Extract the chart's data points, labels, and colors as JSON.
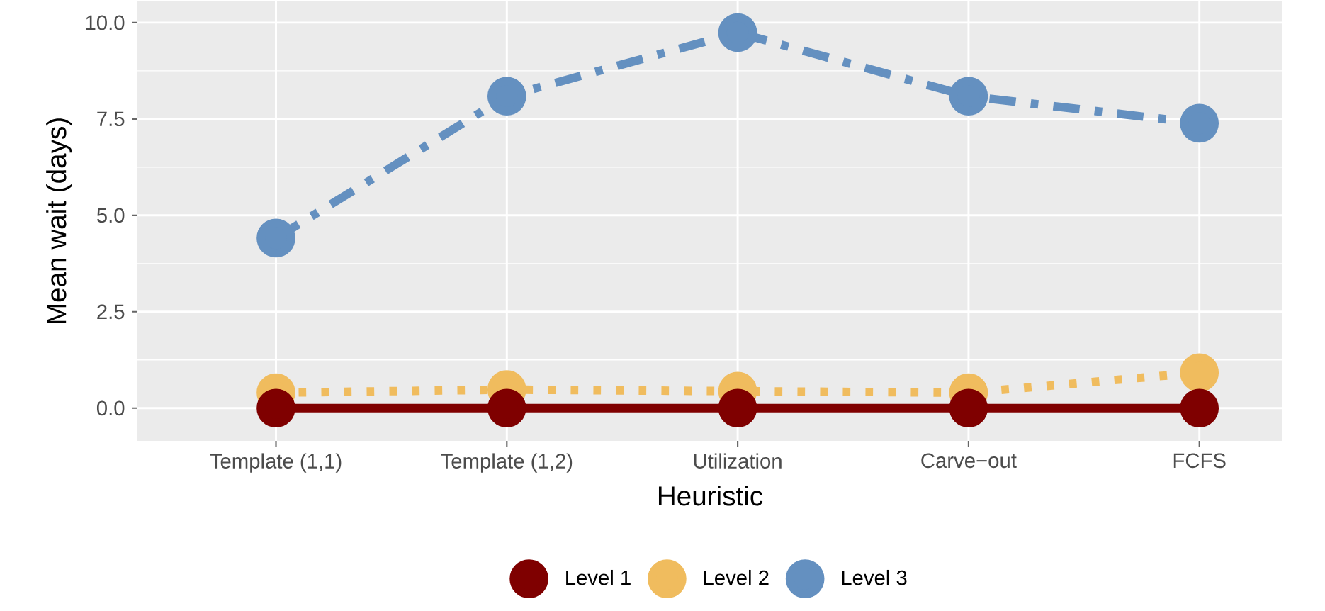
{
  "chart_data": {
    "type": "line",
    "xlabel": "Heuristic",
    "ylabel": "Mean wait (days)",
    "categories": [
      "Template (1,1)",
      "Template (1,2)",
      "Utilization",
      "Carve−out",
      "FCFS"
    ],
    "series": [
      {
        "name": "Level 1",
        "color": "#7f0000",
        "line_style": "solid",
        "values": [
          0,
          0,
          0,
          0,
          0
        ]
      },
      {
        "name": "Level 2",
        "color": "#f0bc5e",
        "line_style": "dotted",
        "values": [
          0.4,
          0.48,
          0.44,
          0.4,
          0.92
        ]
      },
      {
        "name": "Level 3",
        "color": "#6490c0",
        "line_style": "dashed",
        "values": [
          4.41,
          8.09,
          9.74,
          8.09,
          7.39
        ]
      }
    ],
    "ylim": [
      -0.85,
      10.55
    ],
    "yticks": [
      {
        "value": 0,
        "label": "0.0"
      },
      {
        "value": 2.5,
        "label": "2.5"
      },
      {
        "value": 5,
        "label": "5.0"
      },
      {
        "value": 7.5,
        "label": "7.5"
      },
      {
        "value": 10,
        "label": "10.0"
      }
    ],
    "grid": true,
    "legend": "bottom",
    "marker": "circle"
  }
}
